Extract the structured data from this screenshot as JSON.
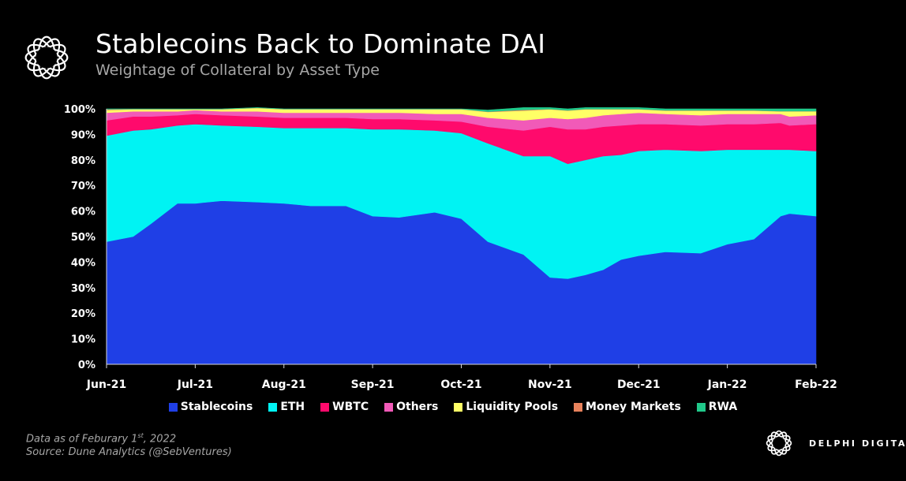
{
  "header": {
    "title": "Stablecoins Back to Dominate DAI",
    "subtitle": "Weightage of Collateral by Asset Type"
  },
  "footnote": {
    "prefix": "Data as of Feburary 1",
    "sup": "st",
    "suffix": ", 2022",
    "source": "Source:  Dune Analytics (@SebVentures)"
  },
  "brand": {
    "name": "DELPHI DIGITAL"
  },
  "chart_data": {
    "type": "area",
    "stacked": true,
    "normalized_percent": true,
    "title": "Weightage of Collateral by Asset Type",
    "xlabel": "",
    "ylabel": "",
    "ylim": [
      0,
      100
    ],
    "yticks": [
      "0%",
      "10%",
      "20%",
      "30%",
      "40%",
      "50%",
      "60%",
      "70%",
      "80%",
      "90%",
      "100%"
    ],
    "xticks": [
      "Jun-21",
      "Jul-21",
      "Aug-21",
      "Sep-21",
      "Oct-21",
      "Nov-21",
      "Dec-21",
      "Jan-22",
      "Feb-22"
    ],
    "x": [
      0,
      0.3,
      0.5,
      0.8,
      1.0,
      1.3,
      1.7,
      2.0,
      2.3,
      2.7,
      3.0,
      3.3,
      3.7,
      4.0,
      4.3,
      4.7,
      5.0,
      5.2,
      5.4,
      5.6,
      5.8,
      6.0,
      6.3,
      6.7,
      7.0,
      7.3,
      7.6,
      7.7,
      8.0
    ],
    "legend_position": "bottom",
    "series": [
      {
        "name": "Stablecoins",
        "color": "#1f3fe6",
        "values": [
          48,
          50,
          55,
          63,
          63,
          64,
          63.5,
          63,
          62,
          62,
          58,
          57.5,
          59.5,
          57,
          48,
          43,
          34,
          33.5,
          35,
          37,
          41,
          42.5,
          44,
          43.5,
          47,
          49,
          58,
          59,
          58
        ]
      },
      {
        "name": "ETH",
        "color": "#00f3f3",
        "values": [
          41.5,
          41.5,
          37,
          30.5,
          31,
          29.5,
          29.5,
          29.5,
          30.5,
          30.5,
          34,
          34.5,
          32,
          33.5,
          38.5,
          38.5,
          47.5,
          45,
          45,
          44.5,
          41,
          41,
          40,
          40,
          37,
          35,
          26,
          25,
          25.5
        ]
      },
      {
        "name": "WBTC",
        "color": "#ff0a6c",
        "values": [
          6,
          5.5,
          5,
          4,
          4,
          4,
          4,
          4,
          4,
          4,
          4,
          4,
          4,
          4.5,
          6.5,
          10,
          11.5,
          13.5,
          12,
          11.5,
          11.5,
          10.5,
          10,
          10,
          10,
          10,
          10.5,
          9.5,
          10.5
        ]
      },
      {
        "name": "Others",
        "color": "#f15ab8",
        "values": [
          3,
          2,
          2,
          1.5,
          1.5,
          1.5,
          2,
          2,
          2,
          2,
          2.5,
          2.5,
          2.5,
          3,
          3.5,
          4,
          3.5,
          4,
          4.5,
          4.5,
          4.5,
          4.5,
          4,
          4,
          4,
          4,
          3.5,
          3.5,
          3.5
        ]
      },
      {
        "name": "Liquidity Pools",
        "color": "#ffff66",
        "values": [
          1,
          0.8,
          0.8,
          0.8,
          0.3,
          0.8,
          1.3,
          1.3,
          1.3,
          1.3,
          1.3,
          1.3,
          1.8,
          1.8,
          2.3,
          3.8,
          3.3,
          3.3,
          3.3,
          2.3,
          1.8,
          1.3,
          1.3,
          1.8,
          1.3,
          1.3,
          1,
          2,
          1.5
        ]
      },
      {
        "name": "Money Markets",
        "color": "#e8825c",
        "values": [
          0.3,
          0.1,
          0.1,
          0.1,
          0.1,
          0.1,
          0.1,
          0.1,
          0.1,
          0.1,
          0.1,
          0.1,
          0.1,
          0.1,
          0.1,
          0.3,
          0.1,
          0.1,
          0.1,
          0.1,
          0.1,
          0.1,
          0.1,
          0.1,
          0.1,
          0.1,
          0.1,
          0.1,
          0.1
        ]
      },
      {
        "name": "RWA",
        "color": "#20c98a",
        "values": [
          0.2,
          0.1,
          0.1,
          0.1,
          0.1,
          0.1,
          0.1,
          0.1,
          0.1,
          0.1,
          0.1,
          0.1,
          0.1,
          0.1,
          0.6,
          0.9,
          0.6,
          0.6,
          0.6,
          0.6,
          0.6,
          0.6,
          0.6,
          0.6,
          0.6,
          0.6,
          0.9,
          0.9,
          0.9
        ]
      }
    ]
  }
}
